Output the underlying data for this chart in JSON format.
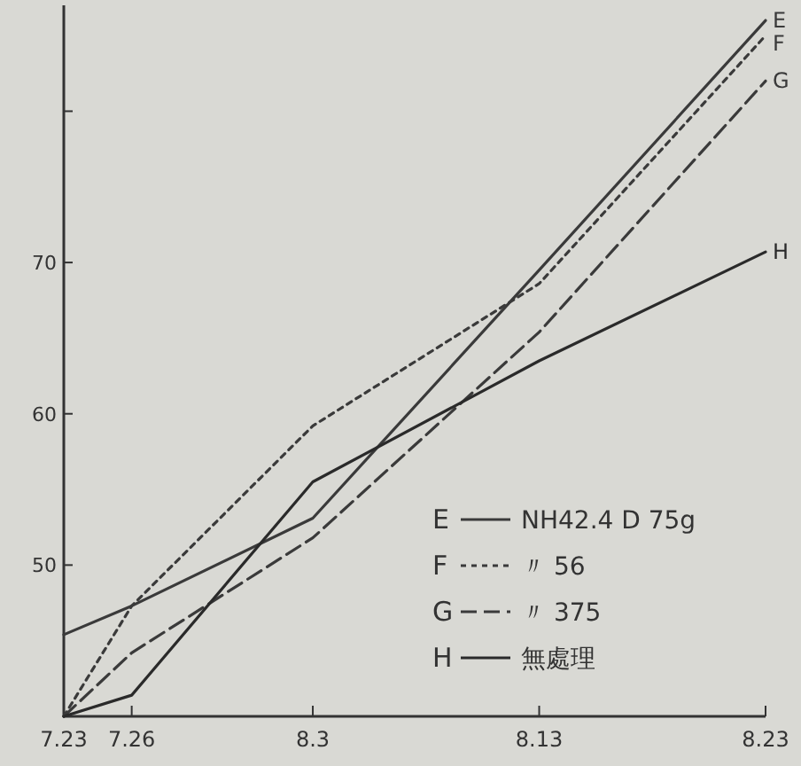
{
  "chart_data": {
    "type": "line",
    "x": [
      "--07-23",
      "--07-26",
      "--08-03",
      "--08-13",
      "--08-23"
    ],
    "xlim": [
      "--07-23",
      "--08-23"
    ],
    "xticks": [
      {
        "value": "--07-23",
        "label": "7.23"
      },
      {
        "value": "--07-26",
        "label": "7.26"
      },
      {
        "value": "--08-03",
        "label": "8.3"
      },
      {
        "value": "--08-13",
        "label": "8.13"
      },
      {
        "value": "--08-23",
        "label": "8.23"
      }
    ],
    "ylim": [
      40,
      87
    ],
    "yticks": [
      50,
      60,
      70,
      {
        "value": 80,
        "label": null
      }
    ],
    "series": [
      {
        "name": "E",
        "color": "#3a3a3a",
        "line_style": "solid",
        "values": [
          45.4,
          47.3,
          53.1,
          69.5,
          86
        ]
      },
      {
        "name": "F",
        "color": "#3a3a3a",
        "line_style": "dotted",
        "values": [
          40,
          47.3,
          59.2,
          68.6,
          85
        ]
      },
      {
        "name": "G",
        "color": "#3a3a3a",
        "line_style": "dashed",
        "values": [
          40,
          44.2,
          51.8,
          65.4,
          82
        ]
      },
      {
        "name": "H",
        "color": "#2a2a2a",
        "line_style": "solid",
        "values": [
          40,
          41.4,
          55.5,
          63.5,
          70.7
        ]
      }
    ],
    "legend": "bottom right",
    "annotations": [
      "NH42.4 D 75g",
      "〃 56",
      "〃 375",
      "無處理"
    ]
  }
}
